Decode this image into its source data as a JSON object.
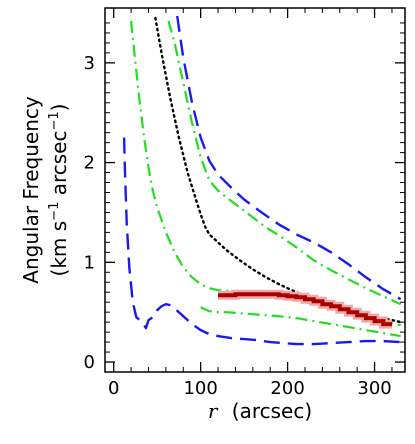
{
  "chart_data": {
    "type": "line",
    "title": "",
    "xlabel": {
      "symbol": "r",
      "unit": "(arcsec)"
    },
    "ylabel": {
      "line1": "Angular Frequency",
      "line2_parts": [
        "(km s",
        "−1",
        " arcsec",
        "−1",
        ")"
      ]
    },
    "xlim": [
      -10,
      335
    ],
    "ylim": [
      -0.1,
      3.55
    ],
    "x_ticks": [
      0,
      100,
      200,
      300
    ],
    "x_tick_labels": [
      "0",
      "100",
      "200",
      "300"
    ],
    "y_ticks": [
      0,
      1,
      2,
      3
    ],
    "y_tick_labels": [
      "0",
      "1",
      "2",
      "3"
    ],
    "grid": false,
    "legend": "none",
    "series": [
      {
        "style": "dotted",
        "color": "#000000",
        "x": [
          48,
          55,
          65,
          75,
          85,
          95,
          100,
          105,
          110,
          120,
          130,
          145,
          160,
          175,
          190,
          210,
          230,
          250,
          270,
          290,
          310,
          330
        ],
        "y": [
          3.45,
          3.1,
          2.65,
          2.25,
          1.9,
          1.62,
          1.48,
          1.36,
          1.28,
          1.2,
          1.12,
          1.02,
          0.93,
          0.85,
          0.78,
          0.7,
          0.64,
          0.58,
          0.53,
          0.48,
          0.44,
          0.4
        ]
      },
      {
        "style": "dash-dot",
        "color": "#22dd22",
        "x": [
          63,
          70,
          80,
          90,
          100,
          110,
          120,
          130,
          145,
          160,
          175,
          190,
          210,
          230,
          250,
          270,
          290,
          310,
          330
        ],
        "y": [
          3.42,
          3.2,
          2.8,
          2.4,
          2.05,
          1.82,
          1.72,
          1.65,
          1.55,
          1.45,
          1.35,
          1.27,
          1.15,
          1.02,
          0.92,
          0.83,
          0.74,
          0.66,
          0.58
        ]
      },
      {
        "style": "dash-dot",
        "color": "#22dd22",
        "x": [
          20,
          25,
          30,
          35,
          40,
          45,
          50,
          60,
          70,
          80,
          90,
          100,
          110,
          120,
          135,
          150,
          165,
          180,
          200,
          220,
          240,
          260,
          280,
          300,
          320,
          330
        ],
        "y": [
          3.42,
          3.0,
          2.6,
          2.25,
          1.95,
          1.72,
          1.55,
          1.3,
          1.1,
          0.95,
          0.85,
          0.78,
          0.74,
          0.72,
          0.71,
          0.7,
          0.69,
          0.67,
          0.64,
          0.6,
          0.56,
          0.52,
          0.48,
          0.43,
          0.39,
          0.37
        ]
      },
      {
        "style": "dash-dot",
        "color": "#22dd22",
        "x": [
          100,
          110,
          120,
          130,
          145,
          160,
          175,
          190,
          210,
          230,
          250,
          270,
          290,
          310,
          330
        ],
        "y": [
          0.55,
          0.51,
          0.5,
          0.5,
          0.49,
          0.48,
          0.47,
          0.46,
          0.44,
          0.41,
          0.38,
          0.35,
          0.32,
          0.29,
          0.26
        ]
      },
      {
        "style": "long-dash",
        "color": "#1a1aee",
        "x": [
          73,
          80,
          90,
          100,
          110,
          120,
          135,
          150,
          170,
          190,
          210,
          230,
          250,
          270,
          290,
          310,
          330
        ],
        "y": [
          3.47,
          3.05,
          2.6,
          2.25,
          2.02,
          1.88,
          1.75,
          1.63,
          1.5,
          1.38,
          1.28,
          1.2,
          1.1,
          0.98,
          0.85,
          0.73,
          0.63
        ]
      },
      {
        "style": "long-dash",
        "color": "#1a1aee",
        "x": [
          12,
          13,
          15,
          18,
          22,
          26,
          30,
          34,
          37,
          40,
          45,
          50,
          55,
          60,
          65,
          70,
          75,
          80,
          90,
          100,
          110,
          120,
          135,
          150,
          165,
          180,
          195,
          210,
          230,
          250,
          270,
          290,
          310,
          330
        ],
        "y": [
          2.25,
          1.9,
          1.4,
          0.95,
          0.6,
          0.45,
          0.42,
          0.38,
          0.34,
          0.42,
          0.45,
          0.52,
          0.56,
          0.58,
          0.57,
          0.54,
          0.5,
          0.46,
          0.38,
          0.32,
          0.28,
          0.26,
          0.24,
          0.23,
          0.22,
          0.2,
          0.19,
          0.18,
          0.18,
          0.19,
          0.2,
          0.21,
          0.21,
          0.2
        ]
      },
      {
        "style": "thick-stepped",
        "color": "#aa0000",
        "x": [
          120,
          130,
          140,
          150,
          160,
          170,
          180,
          190,
          200,
          210,
          220,
          230,
          240,
          250,
          260,
          270,
          280,
          290,
          300,
          310
        ],
        "y": [
          0.67,
          0.67,
          0.68,
          0.68,
          0.68,
          0.68,
          0.68,
          0.67,
          0.66,
          0.65,
          0.63,
          0.61,
          0.58,
          0.56,
          0.53,
          0.5,
          0.47,
          0.44,
          0.41,
          0.38
        ]
      }
    ]
  }
}
